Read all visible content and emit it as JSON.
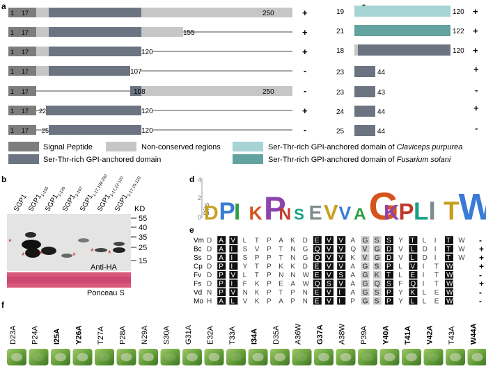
{
  "panels": {
    "a": "a",
    "b": "b",
    "c": "c",
    "d": "d",
    "e": "e",
    "f": "f"
  },
  "colors": {
    "signal": "#7d7d7d",
    "nonconserved": "#c6c6c6",
    "domain": "#6b7480",
    "clav": "#a6d3d3",
    "fus": "#62a3a0",
    "line": "#a5a5a5",
    "red_star": "#d11a1a",
    "ponceau": "#d9597a"
  },
  "panel_a": {
    "rows": [
      {
        "start": "1",
        "signal_end": "17",
        "mid": "",
        "end": "250",
        "result": "+"
      },
      {
        "start": "1",
        "signal_end": "17",
        "mid": "",
        "end": "155",
        "result": "+"
      },
      {
        "start": "1",
        "signal_end": "17",
        "mid": "",
        "end": "120",
        "result": "+"
      },
      {
        "start": "1",
        "signal_end": "17",
        "mid": "",
        "end": "107",
        "result": "-"
      },
      {
        "start": "1",
        "signal_end": "17",
        "mid": "108",
        "end": "250",
        "result": "-"
      },
      {
        "start": "1",
        "signal_end": "17",
        "mid": "22",
        "end": "120",
        "result": "+"
      },
      {
        "start": "1",
        "signal_end": "17",
        "mid": "25",
        "end": "120",
        "result": "-"
      }
    ]
  },
  "panel_c": {
    "rows": [
      {
        "start": "19",
        "end": "120",
        "result": "+"
      },
      {
        "start": "21",
        "end": "122",
        "result": "+"
      },
      {
        "start": "18",
        "end": "120",
        "result": "+"
      },
      {
        "start": "23",
        "end": "44",
        "result": "+"
      },
      {
        "start": "23",
        "end": "43",
        "result": "-"
      },
      {
        "start": "24",
        "end": "44",
        "result": "+"
      },
      {
        "start": "25",
        "end": "44",
        "result": "-"
      }
    ]
  },
  "legend": {
    "signal": "Signal Peptide",
    "nonconserved": "Non-conserved regions",
    "domain": "Ser-Thr-rich GPI-anchored domain",
    "clav_prefix": "Ser-Thr-rich GPI-anchored domain of ",
    "clav_species": "Claviceps purpurea",
    "fus_prefix": "Ser-Thr-rich GPI-anchored domain of ",
    "fus_species": "Fusarium solani"
  },
  "panel_b": {
    "lanes": [
      {
        "base": "SGP1",
        "sub": ""
      },
      {
        "base": "SGP1",
        "sub": "1-155"
      },
      {
        "base": "SGP1",
        "sub": "1-120"
      },
      {
        "base": "SGP1",
        "sub": "1-107"
      },
      {
        "base": "SGP1",
        "sub": "1-17,108-250"
      },
      {
        "base": "SGP1",
        "sub": "1-17,22-120"
      },
      {
        "base": "SGP1",
        "sub": "1-17,25-120"
      }
    ],
    "kd_label": "KD",
    "markers": [
      "55",
      "40",
      "35",
      "25",
      "15"
    ],
    "blot_label": "Anti-HA",
    "ponceau_label": "Ponceau S",
    "star": "*"
  },
  "panel_d": {
    "ylabel": "Bits",
    "yticks": [
      "4",
      "2",
      "0"
    ],
    "logo_letters": [
      "D",
      "P",
      "I",
      "K",
      "P",
      "N",
      "S",
      "E",
      "V",
      "V",
      "A",
      "G",
      "K",
      "P",
      "L",
      "I",
      "T",
      "W"
    ]
  },
  "panel_e": {
    "rows": [
      {
        "name": "Vm",
        "seq": "DAVLTPAKDEVVAGSSYTLITW",
        "result": "-"
      },
      {
        "name": "Bc",
        "seq": "DAISVPTNGQVVQVGDVLDITW",
        "result": "+"
      },
      {
        "name": "Ss",
        "seq": "DAISPPTNGQVVKVGDVLDITW",
        "result": "+"
      },
      {
        "name": "Cp",
        "seq": "DPIYTPKKDEVVAGSPLVITW",
        "result": "+"
      },
      {
        "name": "Fv",
        "seq": "DPVLTPNNWEVSAGKTLEITW",
        "result": "-"
      },
      {
        "name": "Fs",
        "seq": "DPIFKPEAWQSVAGQSFQITW",
        "result": "+"
      },
      {
        "name": "Vd",
        "seq": "NPVNKPTPNEVIAGSPYKLEW",
        "result": "-"
      },
      {
        "name": "Mo",
        "seq": "HALVKPAPNEVIPGSPYLLEW",
        "result": "-"
      }
    ]
  },
  "panel_f": {
    "labels": [
      {
        "text": "D23A",
        "bold": false
      },
      {
        "text": "P24A",
        "bold": false
      },
      {
        "text": "I25A",
        "bold": true
      },
      {
        "text": "Y26A",
        "bold": true
      },
      {
        "text": "T27A",
        "bold": false
      },
      {
        "text": "P28A",
        "bold": false
      },
      {
        "text": "N29A",
        "bold": false
      },
      {
        "text": "S30A",
        "bold": false
      },
      {
        "text": "G31A",
        "bold": false
      },
      {
        "text": "E32A",
        "bold": false
      },
      {
        "text": "T33A",
        "bold": false
      },
      {
        "text": "I34A",
        "bold": true
      },
      {
        "text": "D35A",
        "bold": false
      },
      {
        "text": "A36W",
        "bold": false
      },
      {
        "text": "G37A",
        "bold": true
      },
      {
        "text": "A38W",
        "bold": false
      },
      {
        "text": "P39A",
        "bold": false
      },
      {
        "text": "Y40A",
        "bold": true
      },
      {
        "text": "T41A",
        "bold": true
      },
      {
        "text": "V42A",
        "bold": true
      },
      {
        "text": "T43A",
        "bold": false
      },
      {
        "text": "W44A",
        "bold": true
      }
    ]
  }
}
